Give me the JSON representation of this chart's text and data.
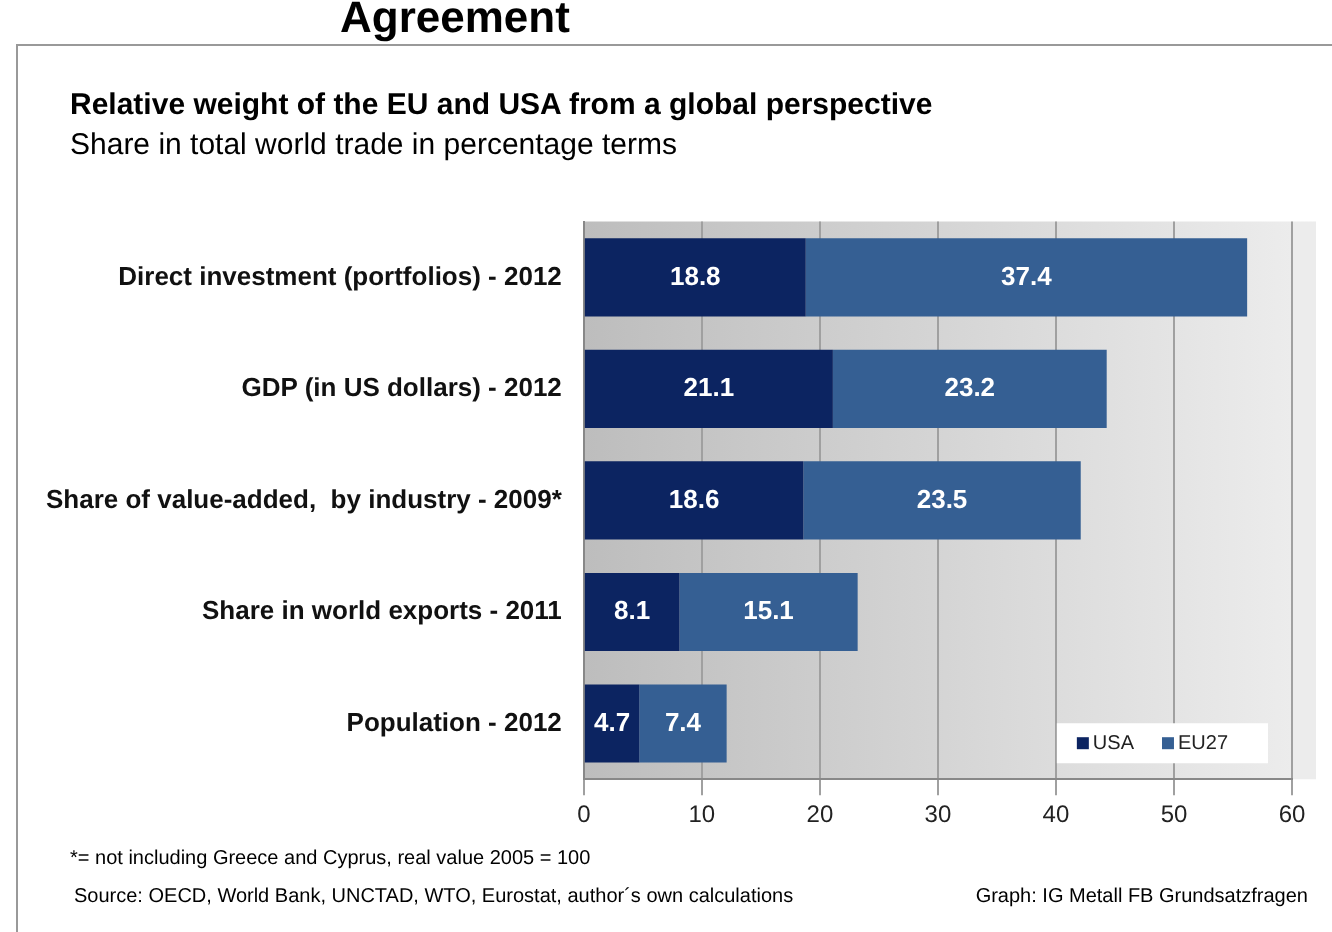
{
  "chart_data": {
    "type": "bar",
    "orientation": "horizontal",
    "stacked": true,
    "title": "Relative weight of the EU and USA from a global perspective",
    "subtitle": "Share in total world trade in percentage terms",
    "categories": [
      "Direct investment (portfolios) - 2012",
      "GDP (in US dollars) - 2012",
      "Share of value-added,  by industry - 2009*",
      "Share in world exports - 2011",
      "Population - 2012"
    ],
    "series": [
      {
        "name": "USA",
        "color": "#0c2461",
        "values": [
          18.8,
          21.1,
          18.6,
          8.1,
          4.7
        ]
      },
      {
        "name": "EU27",
        "color": "#355f93",
        "values": [
          37.4,
          23.2,
          23.5,
          15.1,
          7.4
        ]
      }
    ],
    "xlim": [
      0,
      60
    ],
    "xticks": [
      0,
      10,
      20,
      30,
      40,
      50,
      60
    ],
    "grid": "x",
    "legend": "bottom right",
    "data_labels": true,
    "annotations": [
      "Agreement",
      "*= not including Greece and Cyprus, real value 2005 = 100",
      "Source: OECD, World Bank, UNCTAD, WTO, Eurostat, author´s own calculations",
      "Graph: IG Metall  FB Grundsatzfragen"
    ]
  }
}
